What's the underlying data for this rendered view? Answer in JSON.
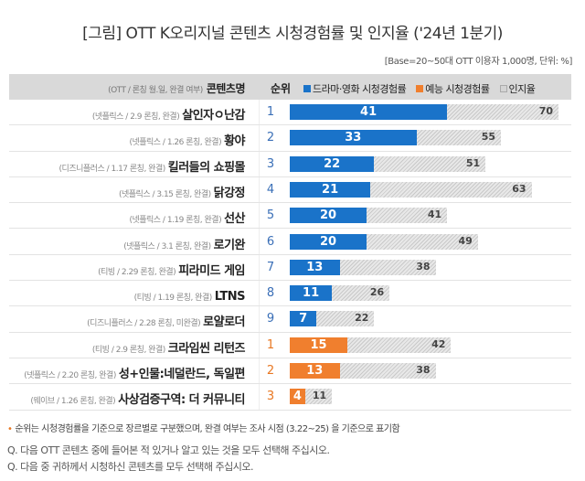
{
  "title": "[그림] OTT K오리지널 콘텐츠 시청경험률 및 인지율 ('24년 1분기)",
  "base": "[Base=20~50대 OTT 이용자 1,000명, 단위: %]",
  "header": {
    "sub": "(OTT / 론칭 월.일, 완결 여부)",
    "main": "콘텐츠명",
    "rank": "순위",
    "legend": [
      {
        "label": "드라마·영화 시청경험률",
        "color": "#1a73c9"
      },
      {
        "label": "예능 시청경험률",
        "color": "#f07f2e"
      },
      {
        "label": "인지율",
        "color": "#d4d4d4"
      }
    ]
  },
  "note": "순위는 시청경험률을 기준으로 장르별로 구분했으며, 완결 여부는 조사 시점 (3.22~25) 을 기준으로 표기함",
  "questions": [
    "Q. 다음 OTT 콘텐츠 중에 들어본 적 있거나 알고 있는 것을 모두 선택해 주십시오.",
    "Q. 다음 중 귀하께서 시청하신 콘텐츠를 모두 선택해 주십시오."
  ],
  "chart_data": {
    "type": "bar",
    "orientation": "horizontal",
    "title": "[그림] OTT K오리지널 콘텐츠 시청경험률 및 인지율 ('24년 1분기)",
    "unit": "%",
    "xlim": [
      0,
      100
    ],
    "legend": [
      "드라마·영화 시청경험률",
      "예능 시청경험률",
      "인지율"
    ],
    "colors": {
      "drama": "#1a73c9",
      "variety": "#f07f2e",
      "awareness": "#d4d4d4",
      "rank_drama": "#3a6fb7",
      "rank_variety": "#e87722"
    },
    "rows": [
      {
        "sub": "(넷플릭스 / 2.9 론칭, 완결)",
        "name": "살인자ㅇ난감",
        "rank": "1",
        "genre": "drama",
        "viewing": 41,
        "awareness": 70
      },
      {
        "sub": "(넷플릭스 / 1.26 론칭, 완결)",
        "name": "황야",
        "rank": "2",
        "genre": "drama",
        "viewing": 33,
        "awareness": 55
      },
      {
        "sub": "(디즈니플러스 / 1.17 론칭, 완결)",
        "name": "킬러들의 쇼핑몰",
        "rank": "3",
        "genre": "drama",
        "viewing": 22,
        "awareness": 51
      },
      {
        "sub": "(넷플릭스 / 3.15 론칭, 완결)",
        "name": "닭강정",
        "rank": "4",
        "genre": "drama",
        "viewing": 21,
        "awareness": 63
      },
      {
        "sub": "(넷플릭스 / 1.19 론칭, 완결)",
        "name": "선산",
        "rank": "5",
        "genre": "drama",
        "viewing": 20,
        "awareness": 41
      },
      {
        "sub": "(넷플릭스 / 3.1 론칭, 완결)",
        "name": "로기완",
        "rank": "6",
        "genre": "drama",
        "viewing": 20,
        "awareness": 49
      },
      {
        "sub": "(티빙 / 2.29 론칭, 완결)",
        "name": "피라미드 게임",
        "rank": "7",
        "genre": "drama",
        "viewing": 13,
        "awareness": 38
      },
      {
        "sub": "(티빙 / 1.19 론칭, 완결)",
        "name": "LTNS",
        "rank": "8",
        "genre": "drama",
        "viewing": 11,
        "awareness": 26
      },
      {
        "sub": "(디즈니플러스 / 2.28 론칭, 미완결)",
        "name": "로얄로더",
        "rank": "9",
        "genre": "drama",
        "viewing": 7,
        "awareness": 22
      },
      {
        "sub": "(티빙 / 2.9 론칭, 완결)",
        "name": "크라임씬 리턴즈",
        "rank": "1",
        "genre": "variety",
        "viewing": 15,
        "awareness": 42
      },
      {
        "sub": "(넷플릭스 / 2.20 론칭, 완결)",
        "name": "성+인물:네덜란드, 독일편",
        "rank": "2",
        "genre": "variety",
        "viewing": 13,
        "awareness": 38
      },
      {
        "sub": "(웨이브 / 1.26 론칭, 완결)",
        "name": "사상검증구역: 더 커뮤니티",
        "rank": "3",
        "genre": "variety",
        "viewing": 4,
        "awareness": 11
      }
    ]
  }
}
